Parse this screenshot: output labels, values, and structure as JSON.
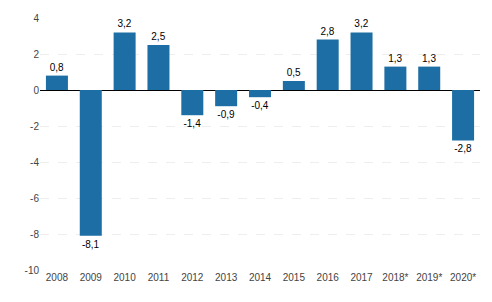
{
  "chart_data": {
    "type": "bar",
    "categories": [
      "2008",
      "2009",
      "2010",
      "2011",
      "2012",
      "2013",
      "2014",
      "2015",
      "2016",
      "2017",
      "2018*",
      "2019*",
      "2020*"
    ],
    "values": [
      0.8,
      -8.1,
      3.2,
      2.5,
      -1.4,
      -0.9,
      -0.4,
      0.5,
      2.8,
      3.2,
      1.3,
      1.3,
      -2.8
    ],
    "value_labels": [
      "0,8",
      "-8,1",
      "3,2",
      "2,5",
      "-1,4",
      "-0,9",
      "-0,4",
      "0,5",
      "2,8",
      "3,2",
      "1,3",
      "1,3",
      "-2,8"
    ],
    "data_labels": true,
    "color": "#1c6ea4",
    "ylim": [
      -10,
      4
    ],
    "yticks": [
      -10,
      -8,
      -6,
      -4,
      -2,
      0,
      2,
      4
    ],
    "grid": true
  }
}
